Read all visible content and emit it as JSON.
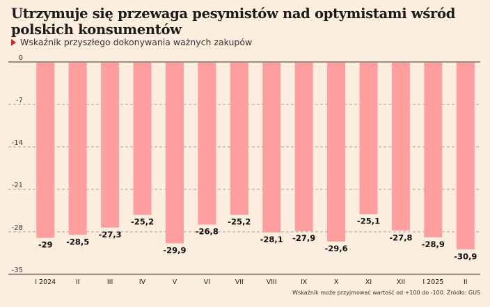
{
  "title": "Utrzymuje się przewaga pesymistów nad optymistami wśród polskich konsumentów",
  "subtitle": "Wskaźnik przyszłego dokonywania ważnych zakupów",
  "footnote": "Wskaźnik może przyjmować wartość od +100 do -100. Źródło: GUS",
  "colors": {
    "bar": "#ff9e9e",
    "background": "#fbeede",
    "marker": "#d9222a"
  },
  "chart_data": {
    "type": "bar",
    "categories": [
      "I 2024",
      "II",
      "III",
      "IV",
      "V",
      "VI",
      "VII",
      "VIII",
      "IX",
      "X",
      "XI",
      "XII",
      "I 2025",
      "II"
    ],
    "values": [
      -29,
      -28.5,
      -27.3,
      -25.2,
      -29.9,
      -26.8,
      -25.2,
      -28.1,
      -27.9,
      -29.6,
      -25.1,
      -27.8,
      -28.9,
      -30.9
    ],
    "value_labels": [
      "-29",
      "-28,5",
      "-27,3",
      "-25,2",
      "-29,9",
      "-26,8",
      "-25,2",
      "-28,1",
      "-27,9",
      "-29,6",
      "-25,1",
      "-27,8",
      "-28,9",
      "-30,9"
    ],
    "yticks": [
      0,
      -7,
      -14,
      -21,
      -28,
      -35
    ],
    "ylim": [
      -35,
      0
    ],
    "grid": true
  }
}
